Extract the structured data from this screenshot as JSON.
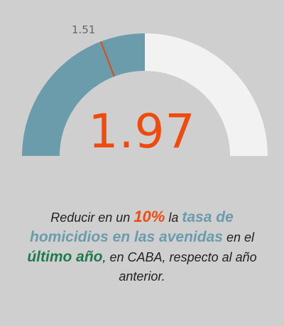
{
  "chart_data": {
    "type": "gauge",
    "value": 1.97,
    "value_label": "1.97",
    "target": 1.51,
    "target_label": "1.51",
    "min": 0,
    "max": 3.94,
    "colors": {
      "fill": "#6a9cab",
      "track": "#f2f2f2",
      "target": "#e04a1b",
      "value_text": "#f04b0e"
    }
  },
  "caption": {
    "p1": "Reducir en un ",
    "pct": "10%",
    "p2": " la ",
    "teal": "tasa de homicidios  en las avenidas",
    "p3": " en el ",
    "green": "último año",
    "p4": ", en CABA, respecto al año anterior."
  }
}
